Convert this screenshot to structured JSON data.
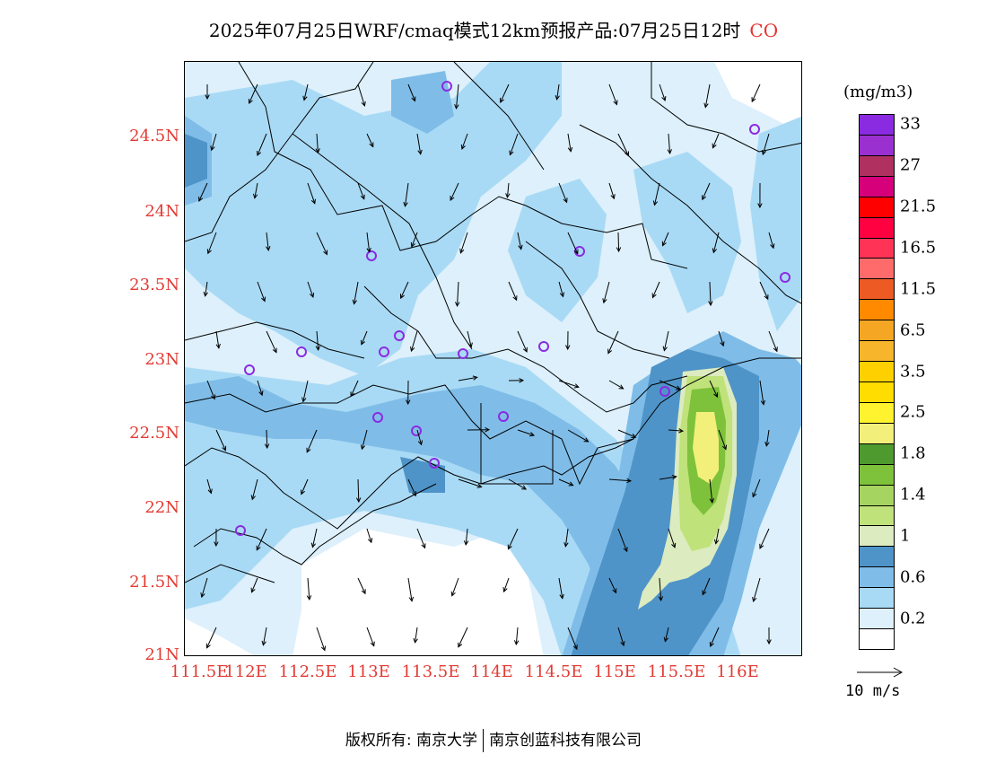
{
  "title": {
    "text": "2025年07月25日WRF/cmaq模式12km预报产品:07月25日12时",
    "species": "CO"
  },
  "map": {
    "lat_ticks": [
      "24.5N",
      "24N",
      "23.5N",
      "23N",
      "22.5N",
      "22N",
      "21.5N",
      "21N"
    ],
    "lon_ticks": [
      "111.5E",
      "112E",
      "112.5E",
      "113E",
      "113.5E",
      "114E",
      "114.5E",
      "115E",
      "115.5E",
      "116E"
    ],
    "station_marker": "circle-icon",
    "wind_vectors": "arrow-icon"
  },
  "colorbar": {
    "units": "(mg/m3)",
    "levels": [
      {
        "color": "#ffffff",
        "label": ""
      },
      {
        "color": "#ddf0fb",
        "label": "0.2"
      },
      {
        "color": "#a9daf5",
        "label": ""
      },
      {
        "color": "#7fbde8",
        "label": "0.6"
      },
      {
        "color": "#4f94c8",
        "label": ""
      },
      {
        "color": "#dcebc0",
        "label": "1"
      },
      {
        "color": "#c0e27a",
        "label": ""
      },
      {
        "color": "#a6d461",
        "label": "1.4"
      },
      {
        "color": "#7ec23b",
        "label": ""
      },
      {
        "color": "#4f9a2e",
        "label": "1.8"
      },
      {
        "color": "#f2f07a",
        "label": ""
      },
      {
        "color": "#fff22e",
        "label": "2.5"
      },
      {
        "color": "#ffdd00",
        "label": ""
      },
      {
        "color": "#ffd000",
        "label": "3.5"
      },
      {
        "color": "#f7b52c",
        "label": ""
      },
      {
        "color": "#f5a623",
        "label": "6.5"
      },
      {
        "color": "#ff8a00",
        "label": ""
      },
      {
        "color": "#ee5a24",
        "label": "11.5"
      },
      {
        "color": "#ff6b6b",
        "label": ""
      },
      {
        "color": "#ff3355",
        "label": "16.5"
      },
      {
        "color": "#ff0040",
        "label": ""
      },
      {
        "color": "#ff0000",
        "label": "21.5"
      },
      {
        "color": "#d6007a",
        "label": ""
      },
      {
        "color": "#b03060",
        "label": "27"
      },
      {
        "color": "#9b30d0",
        "label": ""
      },
      {
        "color": "#8a2be2",
        "label": "33"
      }
    ]
  },
  "wind_reference": {
    "label": "10 m/s"
  },
  "credit": {
    "left": "版权所有: 南京大学",
    "right": "南京创蓝科技有限公司"
  }
}
